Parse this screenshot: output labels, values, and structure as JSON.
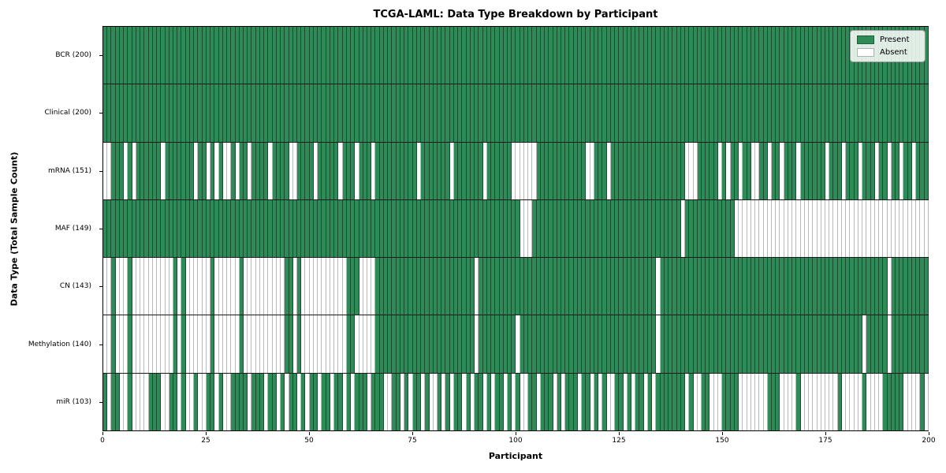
{
  "title": "TCGA-LAML: Data Type Breakdown by Participant",
  "x_axis": {
    "label": "Participant",
    "ticks": [
      0,
      25,
      50,
      75,
      100,
      125,
      150,
      175,
      200
    ],
    "range": [
      0,
      200
    ]
  },
  "y_axis": {
    "label": "Data Type (Total Sample Count)"
  },
  "legend": {
    "items": [
      {
        "label": "Present",
        "color": "#2e8b57"
      },
      {
        "label": "Absent",
        "color": "#ffffff"
      }
    ]
  },
  "colors": {
    "present": "#2e8b57",
    "absent": "#ffffff",
    "bar_edge": "rgba(0,0,0,0.45)",
    "spine": "#000000"
  },
  "chart_data": {
    "type": "heatmap",
    "n_participants": 200,
    "value_encoding": "present=green, absent=white",
    "rows": [
      {
        "label": "BCR (200)",
        "present_count": 200,
        "absent_participants": []
      },
      {
        "label": "Clinical (200)",
        "present_count": 200,
        "absent_participants": []
      },
      {
        "label": "mRNA (151)",
        "present_count": 151,
        "absent_participants": [
          0,
          1,
          5,
          7,
          14,
          22,
          25,
          27,
          29,
          30,
          32,
          35,
          40,
          45,
          46,
          51,
          57,
          61,
          65,
          76,
          84,
          92,
          99,
          100,
          101,
          102,
          103,
          104,
          117,
          118,
          122,
          141,
          142,
          143,
          149,
          151,
          154,
          157,
          158,
          161,
          164,
          168,
          175,
          179,
          183,
          187,
          190,
          193,
          196
        ]
      },
      {
        "label": "MAF (149)",
        "present_count": 149,
        "absent_participants": [
          101,
          102,
          103,
          140,
          153,
          154,
          155,
          156,
          157,
          158,
          159,
          160,
          161,
          162,
          163,
          164,
          165,
          166,
          167,
          168,
          169,
          170,
          171,
          172,
          173,
          174,
          175,
          176,
          177,
          178,
          179,
          180,
          181,
          182,
          183,
          184,
          185,
          186,
          187,
          188,
          189,
          190,
          191,
          192,
          193,
          194,
          195,
          196,
          197,
          198,
          199
        ]
      },
      {
        "label": "CN (143)",
        "present_count": 143,
        "absent_participants": [
          0,
          1,
          3,
          4,
          5,
          7,
          8,
          9,
          10,
          11,
          12,
          13,
          14,
          15,
          16,
          18,
          20,
          21,
          22,
          23,
          24,
          25,
          27,
          28,
          29,
          30,
          31,
          32,
          34,
          35,
          36,
          37,
          38,
          39,
          40,
          41,
          42,
          43,
          46,
          48,
          49,
          50,
          51,
          52,
          53,
          54,
          55,
          56,
          57,
          58,
          62,
          63,
          64,
          65,
          90,
          134,
          190
        ]
      },
      {
        "label": "Methylation (140)",
        "present_count": 140,
        "absent_participants": [
          0,
          1,
          3,
          4,
          5,
          7,
          8,
          9,
          10,
          11,
          12,
          13,
          14,
          15,
          16,
          18,
          20,
          21,
          22,
          23,
          24,
          25,
          27,
          28,
          29,
          30,
          31,
          32,
          34,
          35,
          36,
          37,
          38,
          39,
          40,
          41,
          42,
          43,
          46,
          48,
          49,
          50,
          51,
          52,
          53,
          54,
          55,
          56,
          57,
          58,
          61,
          62,
          63,
          64,
          65,
          90,
          100,
          134,
          184,
          190
        ]
      },
      {
        "label": "miR (103)",
        "present_count": 103,
        "absent_participants": [
          1,
          4,
          5,
          7,
          8,
          9,
          10,
          14,
          15,
          18,
          20,
          21,
          23,
          24,
          27,
          29,
          30,
          35,
          39,
          42,
          44,
          47,
          49,
          52,
          55,
          58,
          60,
          64,
          68,
          69,
          72,
          74,
          77,
          79,
          80,
          82,
          84,
          87,
          89,
          92,
          94,
          97,
          99,
          101,
          102,
          105,
          109,
          111,
          115,
          118,
          120,
          122,
          123,
          126,
          128,
          131,
          133,
          141,
          143,
          144,
          147,
          148,
          149,
          154,
          155,
          156,
          157,
          158,
          159,
          160,
          164,
          165,
          166,
          167,
          169,
          170,
          171,
          172,
          173,
          174,
          175,
          176,
          177,
          179,
          180,
          181,
          182,
          183,
          185,
          186,
          187,
          188,
          194,
          195,
          196,
          197,
          199
        ]
      }
    ]
  }
}
